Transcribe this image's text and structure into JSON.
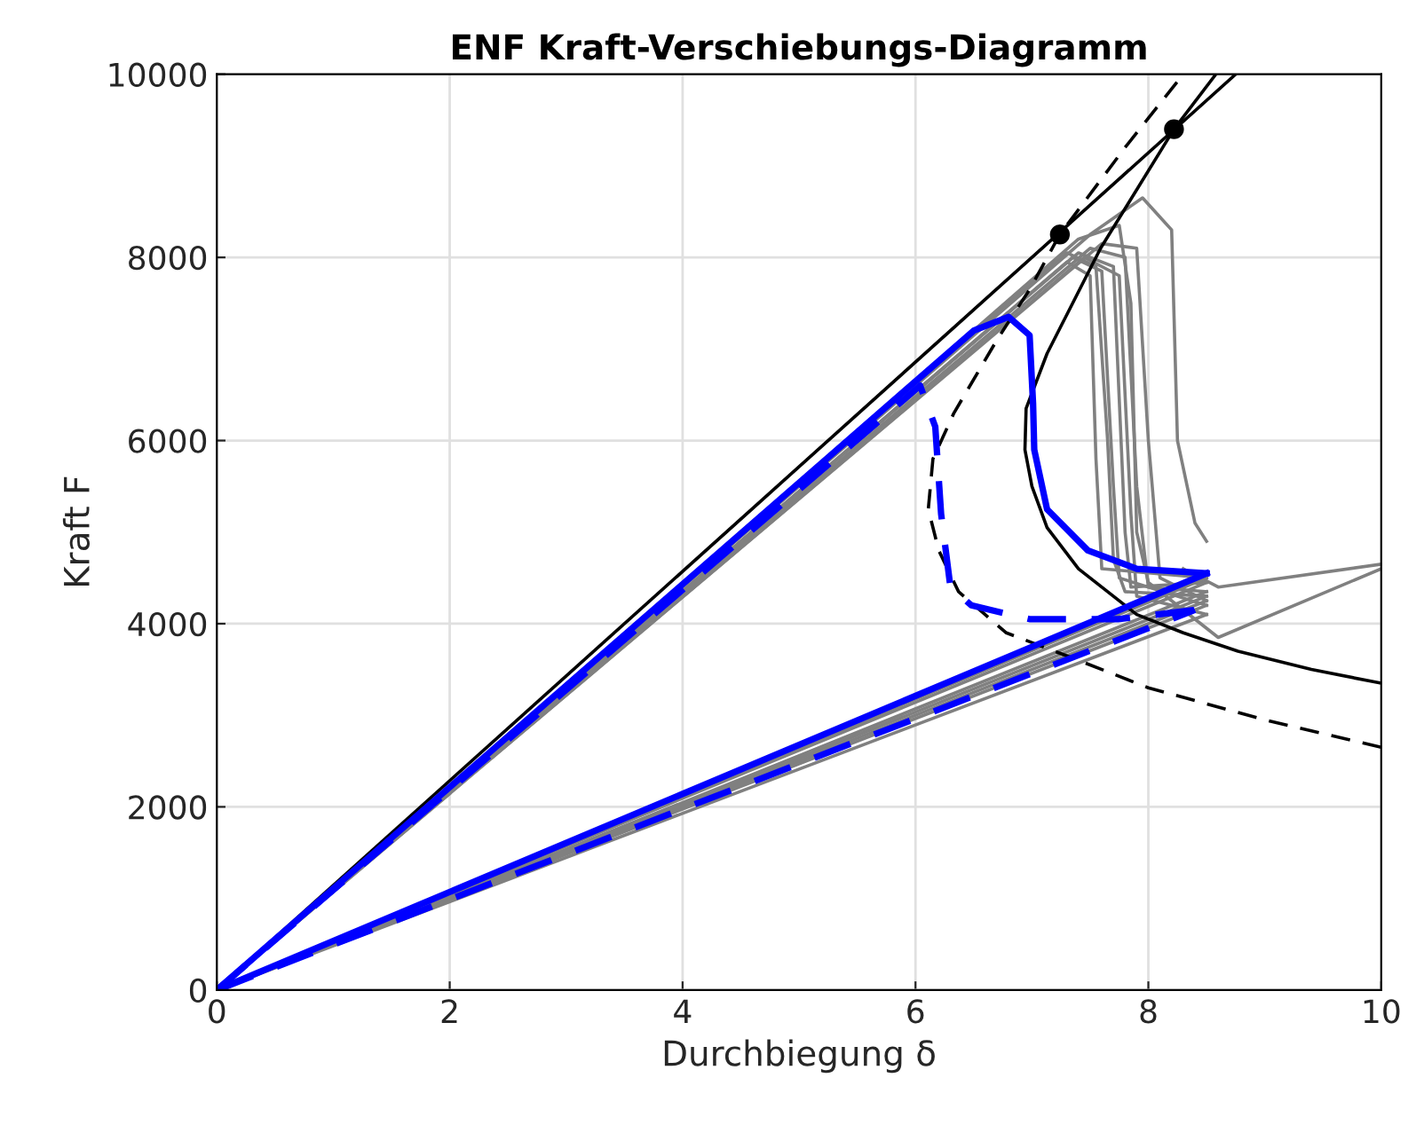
{
  "chart_data": {
    "type": "line",
    "title": "ENF Kraft-Verschiebungs-Diagramm",
    "xlabel": "Durchbiegung δ",
    "ylabel": "Kraft F",
    "xlim": [
      0,
      10
    ],
    "ylim": [
      0,
      10000
    ],
    "xticks": [
      0,
      2,
      4,
      6,
      8,
      10
    ],
    "yticks": [
      0,
      2000,
      4000,
      6000,
      8000,
      10000
    ],
    "grid": true,
    "legend": false,
    "series": [
      {
        "color": "#808080",
        "line_style": "solid",
        "x": [
          0,
          7.3,
          7.55,
          7.65,
          7.7,
          7.8,
          8.5
        ],
        "values": [
          0,
          8050,
          7900,
          6000,
          4700,
          4350,
          4300
        ]
      },
      {
        "color": "#808080",
        "line_style": "solid",
        "x": [
          0,
          8.5
        ],
        "values": [
          0,
          4300
        ]
      },
      {
        "color": "#808080",
        "line_style": "solid",
        "x": [
          0,
          7.35,
          7.6,
          7.7,
          7.75,
          8.5
        ],
        "values": [
          0,
          8000,
          7850,
          5500,
          4500,
          4200
        ]
      },
      {
        "color": "#808080",
        "line_style": "solid",
        "x": [
          0,
          8.5
        ],
        "values": [
          0,
          4200
        ]
      },
      {
        "color": "#808080",
        "line_style": "solid",
        "x": [
          0,
          7.4,
          7.7,
          7.8,
          7.85,
          8.5
        ],
        "values": [
          0,
          8050,
          7900,
          5000,
          4400,
          4450
        ]
      },
      {
        "color": "#808080",
        "line_style": "solid",
        "x": [
          0,
          8.5
        ],
        "values": [
          0,
          4450
        ]
      },
      {
        "color": "#808080",
        "line_style": "solid",
        "x": [
          0,
          7.45,
          7.75,
          7.85,
          7.9,
          8.5
        ],
        "values": [
          0,
          8000,
          7800,
          5200,
          4300,
          4100
        ]
      },
      {
        "color": "#808080",
        "line_style": "solid",
        "x": [
          0,
          8.5
        ],
        "values": [
          0,
          4100
        ]
      },
      {
        "color": "#808080",
        "line_style": "solid",
        "x": [
          0,
          7.5,
          7.8,
          7.9,
          8.0,
          8.5
        ],
        "values": [
          0,
          8100,
          8000,
          5500,
          4400,
          4350
        ]
      },
      {
        "color": "#808080",
        "line_style": "solid",
        "x": [
          0,
          8.5
        ],
        "values": [
          0,
          4350
        ]
      },
      {
        "color": "#808080",
        "line_style": "solid",
        "x": [
          0,
          7.3,
          7.5,
          7.55,
          7.6,
          8.5
        ],
        "values": [
          0,
          7950,
          7800,
          5800,
          4600,
          4500
        ]
      },
      {
        "color": "#808080",
        "line_style": "solid",
        "x": [
          0,
          8.5
        ],
        "values": [
          0,
          4500
        ]
      },
      {
        "color": "#808080",
        "line_style": "solid",
        "x": [
          0,
          7.6,
          7.9,
          8.0,
          8.1,
          8.5
        ],
        "values": [
          0,
          8150,
          8100,
          6000,
          4500,
          4250
        ]
      },
      {
        "color": "#808080",
        "line_style": "solid",
        "x": [
          0,
          8.5
        ],
        "values": [
          0,
          4250
        ]
      },
      {
        "color": "#808080",
        "line_style": "solid",
        "x": [
          0,
          7.5,
          7.95,
          8.2,
          8.25,
          8.4,
          8.5
        ],
        "values": [
          0,
          8250,
          8650,
          8300,
          6000,
          5100,
          4900
        ]
      },
      {
        "color": "#808080",
        "line_style": "solid",
        "x": [
          8.3,
          8.6,
          10
        ],
        "values": [
          4600,
          4400,
          4650
        ]
      },
      {
        "color": "#808080",
        "line_style": "solid",
        "x": [
          0,
          7.4,
          7.75,
          7.85,
          7.9,
          8.0,
          8.6,
          10
        ],
        "values": [
          0,
          8200,
          8350,
          7500,
          5000,
          4450,
          3850,
          4600
        ]
      },
      {
        "color": "#000000",
        "line_style": "solid",
        "x": [
          0,
          8.75
        ],
        "values": [
          0,
          10000
        ]
      },
      {
        "color": "#000000",
        "line_style": "dashed",
        "x": [
          10,
          9.0,
          8.0,
          7.4,
          6.78,
          6.37,
          6.2,
          6.11,
          6.15,
          6.33,
          6.7,
          6.98,
          7.24,
          7.8,
          8.3
        ],
        "values": [
          2650,
          2950,
          3300,
          3600,
          3900,
          4350,
          4800,
          5250,
          5800,
          6300,
          7100,
          7650,
          8250,
          9200,
          10000
        ]
      },
      {
        "color": "#000000",
        "line_style": "solid",
        "x": [
          10,
          9.4,
          8.77,
          8.3,
          7.9,
          7.4,
          7.13,
          7.0,
          6.94,
          6.95,
          7.13,
          7.59,
          8.22,
          8.58
        ],
        "values": [
          3350,
          3500,
          3700,
          3900,
          4100,
          4600,
          5050,
          5500,
          5900,
          6350,
          6950,
          8100,
          9400,
          10000
        ]
      },
      {
        "color": "#0000ff",
        "line_style": "solid",
        "x": [
          0,
          6.5,
          6.8,
          6.98,
          7.01,
          7.02,
          7.13,
          7.48,
          7.9,
          8.5
        ],
        "values": [
          0,
          7200,
          7350,
          7150,
          6400,
          5900,
          5250,
          4800,
          4600,
          4550
        ]
      },
      {
        "color": "#0000ff",
        "line_style": "solid",
        "x": [
          0,
          8.5
        ],
        "values": [
          0,
          4550
        ]
      },
      {
        "color": "#0000ff",
        "line_style": "dashed",
        "x": [
          0,
          6.04,
          6.17,
          6.22,
          6.3,
          6.48,
          6.98,
          7.74,
          8.4
        ],
        "values": [
          0,
          6600,
          6150,
          5200,
          4400,
          4200,
          4050,
          4050,
          4150
        ]
      },
      {
        "color": "#0000ff",
        "line_style": "dashed",
        "x": [
          0,
          8.4
        ],
        "values": [
          0,
          4150
        ]
      },
      {
        "type": "scatter",
        "color": "#000000",
        "marker": "circle",
        "x": [
          7.24,
          8.22
        ],
        "values": [
          8250,
          9400
        ]
      }
    ]
  }
}
